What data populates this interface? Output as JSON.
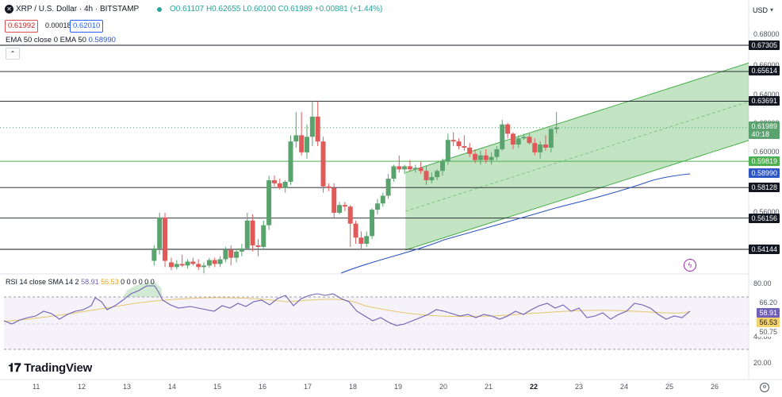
{
  "header": {
    "symbol": "XRP / U.S. Dollar · 4h · BITSTAMP",
    "ohlc": "O0.61107 H0.62655 L0.60100 C0.61989 +0.00881 (+1.44%)",
    "bid": "0.61992",
    "spread": "0.00018",
    "ask": "0.62010",
    "ema_label": "EMA 50 close 0 EMA 50",
    "ema_value": "0.58990",
    "currency": "USD"
  },
  "rsi": {
    "label": "RSI 14 close SMA 14 2",
    "value1": "58.91",
    "value2": "56.53",
    "zeros": "0 0 0 0 0 0",
    "levels": [
      "80.00",
      "40.00",
      "20.00"
    ],
    "badges": [
      "66.20",
      "58.91",
      "56.53",
      "50.75"
    ]
  },
  "colors": {
    "up": "#5aa36e",
    "down": "#e05a5a",
    "ema": "#2e55c4",
    "channel": "#6ab36a",
    "rsi_line": "#6f5fb5",
    "rsi_sma": "#e8c66a"
  },
  "logo_text": "TradingView",
  "chart_data": {
    "type": "candlestick",
    "title": "XRP / U.S. Dollar · 4h · BITSTAMP",
    "y_axis_ticks": [
      "0.68000",
      "0.66000",
      "0.64000",
      "0.62000",
      "0.60000",
      "0.56000"
    ],
    "x_axis_ticks": [
      "11",
      "12",
      "13",
      "14",
      "15",
      "16",
      "17",
      "18",
      "19",
      "20",
      "21",
      "22",
      "23",
      "24",
      "25",
      "26"
    ],
    "price_levels": [
      {
        "value": 0.67305,
        "label": "0.67305",
        "kind": "horizontal"
      },
      {
        "value": 0.65614,
        "label": "0.65614",
        "kind": "horizontal"
      },
      {
        "value": 0.63691,
        "label": "0.63691",
        "kind": "horizontal"
      },
      {
        "value": 0.59819,
        "label": "0.59819",
        "kind": "horizontal"
      },
      {
        "value": 0.58128,
        "label": "0.58128",
        "kind": "horizontal"
      },
      {
        "value": 0.56156,
        "label": "0.56156",
        "kind": "horizontal"
      },
      {
        "value": 0.54144,
        "label": "0.54144",
        "kind": "horizontal"
      }
    ],
    "current_price": "0.61989",
    "countdown": "40:18",
    "ema_price": "0.58990",
    "ylim": [
      0.53,
      0.695
    ],
    "channel": {
      "x_start": 19.18,
      "x_end": 26.7,
      "lower_start": 0.541,
      "lower_end": 0.611,
      "upper_start": 0.591,
      "upper_end": 0.661
    },
    "candles": [
      {
        "t": 13.62,
        "o": 0.534,
        "h": 0.544,
        "l": 0.531,
        "c": 0.542
      },
      {
        "t": 13.74,
        "o": 0.542,
        "h": 0.565,
        "l": 0.538,
        "c": 0.562
      },
      {
        "t": 13.86,
        "o": 0.562,
        "h": 0.565,
        "l": 0.53,
        "c": 0.534
      },
      {
        "t": 14.0,
        "o": 0.533,
        "h": 0.536,
        "l": 0.528,
        "c": 0.53
      },
      {
        "t": 14.12,
        "o": 0.53,
        "h": 0.5345,
        "l": 0.5285,
        "c": 0.532
      },
      {
        "t": 14.24,
        "o": 0.532,
        "h": 0.538,
        "l": 0.53,
        "c": 0.531
      },
      {
        "t": 14.36,
        "o": 0.531,
        "h": 0.535,
        "l": 0.529,
        "c": 0.5335
      },
      {
        "t": 14.48,
        "o": 0.5335,
        "h": 0.536,
        "l": 0.531,
        "c": 0.532
      },
      {
        "t": 14.6,
        "o": 0.532,
        "h": 0.535,
        "l": 0.528,
        "c": 0.53
      },
      {
        "t": 14.72,
        "o": 0.53,
        "h": 0.533,
        "l": 0.526,
        "c": 0.531
      },
      {
        "t": 14.84,
        "o": 0.531,
        "h": 0.536,
        "l": 0.5295,
        "c": 0.5345
      },
      {
        "t": 14.96,
        "o": 0.5345,
        "h": 0.536,
        "l": 0.53,
        "c": 0.532
      },
      {
        "t": 15.08,
        "o": 0.532,
        "h": 0.537,
        "l": 0.53,
        "c": 0.535
      },
      {
        "t": 15.2,
        "o": 0.535,
        "h": 0.543,
        "l": 0.533,
        "c": 0.541
      },
      {
        "t": 15.32,
        "o": 0.541,
        "h": 0.544,
        "l": 0.531,
        "c": 0.536
      },
      {
        "t": 15.44,
        "o": 0.536,
        "h": 0.542,
        "l": 0.533,
        "c": 0.54
      },
      {
        "t": 15.56,
        "o": 0.54,
        "h": 0.545,
        "l": 0.537,
        "c": 0.542
      },
      {
        "t": 15.68,
        "o": 0.542,
        "h": 0.565,
        "l": 0.541,
        "c": 0.56
      },
      {
        "t": 15.8,
        "o": 0.56,
        "h": 0.564,
        "l": 0.54,
        "c": 0.544
      },
      {
        "t": 15.92,
        "o": 0.544,
        "h": 0.548,
        "l": 0.537,
        "c": 0.543
      },
      {
        "t": 16.04,
        "o": 0.543,
        "h": 0.56,
        "l": 0.542,
        "c": 0.557
      },
      {
        "t": 16.16,
        "o": 0.557,
        "h": 0.589,
        "l": 0.554,
        "c": 0.586
      },
      {
        "t": 16.28,
        "o": 0.586,
        "h": 0.589,
        "l": 0.582,
        "c": 0.584
      },
      {
        "t": 16.4,
        "o": 0.584,
        "h": 0.587,
        "l": 0.58,
        "c": 0.581
      },
      {
        "t": 16.52,
        "o": 0.581,
        "h": 0.586,
        "l": 0.578,
        "c": 0.585
      },
      {
        "t": 16.64,
        "o": 0.585,
        "h": 0.615,
        "l": 0.583,
        "c": 0.611
      },
      {
        "t": 16.76,
        "o": 0.611,
        "h": 0.63,
        "l": 0.607,
        "c": 0.615
      },
      {
        "t": 16.88,
        "o": 0.615,
        "h": 0.63,
        "l": 0.602,
        "c": 0.604
      },
      {
        "t": 17.0,
        "o": 0.604,
        "h": 0.622,
        "l": 0.6,
        "c": 0.614
      },
      {
        "t": 17.12,
        "o": 0.614,
        "h": 0.637,
        "l": 0.608,
        "c": 0.627
      },
      {
        "t": 17.24,
        "o": 0.627,
        "h": 0.637,
        "l": 0.608,
        "c": 0.611
      },
      {
        "t": 17.36,
        "o": 0.611,
        "h": 0.614,
        "l": 0.578,
        "c": 0.582
      },
      {
        "t": 17.48,
        "o": 0.582,
        "h": 0.584,
        "l": 0.579,
        "c": 0.581
      },
      {
        "t": 17.6,
        "o": 0.581,
        "h": 0.584,
        "l": 0.562,
        "c": 0.565
      },
      {
        "t": 17.72,
        "o": 0.565,
        "h": 0.572,
        "l": 0.564,
        "c": 0.57
      },
      {
        "t": 17.84,
        "o": 0.57,
        "h": 0.572,
        "l": 0.566,
        "c": 0.569
      },
      {
        "t": 17.96,
        "o": 0.569,
        "h": 0.57,
        "l": 0.543,
        "c": 0.558
      },
      {
        "t": 18.08,
        "o": 0.558,
        "h": 0.56,
        "l": 0.545,
        "c": 0.549
      },
      {
        "t": 18.2,
        "o": 0.549,
        "h": 0.553,
        "l": 0.541,
        "c": 0.545
      },
      {
        "t": 18.32,
        "o": 0.545,
        "h": 0.553,
        "l": 0.543,
        "c": 0.55
      },
      {
        "t": 18.44,
        "o": 0.55,
        "h": 0.568,
        "l": 0.548,
        "c": 0.567
      },
      {
        "t": 18.56,
        "o": 0.567,
        "h": 0.574,
        "l": 0.564,
        "c": 0.571
      },
      {
        "t": 18.68,
        "o": 0.571,
        "h": 0.578,
        "l": 0.569,
        "c": 0.576
      },
      {
        "t": 18.8,
        "o": 0.576,
        "h": 0.59,
        "l": 0.574,
        "c": 0.587
      },
      {
        "t": 18.92,
        "o": 0.587,
        "h": 0.596,
        "l": 0.585,
        "c": 0.595
      },
      {
        "t": 19.04,
        "o": 0.595,
        "h": 0.602,
        "l": 0.591,
        "c": 0.593
      },
      {
        "t": 19.16,
        "o": 0.593,
        "h": 0.596,
        "l": 0.59,
        "c": 0.595
      },
      {
        "t": 19.28,
        "o": 0.595,
        "h": 0.599,
        "l": 0.592,
        "c": 0.593
      },
      {
        "t": 19.4,
        "o": 0.593,
        "h": 0.596,
        "l": 0.591,
        "c": 0.594
      },
      {
        "t": 19.52,
        "o": 0.594,
        "h": 0.598,
        "l": 0.59,
        "c": 0.592
      },
      {
        "t": 19.64,
        "o": 0.592,
        "h": 0.595,
        "l": 0.583,
        "c": 0.586
      },
      {
        "t": 19.76,
        "o": 0.586,
        "h": 0.591,
        "l": 0.584,
        "c": 0.588
      },
      {
        "t": 19.88,
        "o": 0.588,
        "h": 0.593,
        "l": 0.586,
        "c": 0.592
      },
      {
        "t": 20.0,
        "o": 0.592,
        "h": 0.6,
        "l": 0.589,
        "c": 0.598
      },
      {
        "t": 20.12,
        "o": 0.598,
        "h": 0.616,
        "l": 0.596,
        "c": 0.612
      },
      {
        "t": 20.24,
        "o": 0.612,
        "h": 0.617,
        "l": 0.608,
        "c": 0.611
      },
      {
        "t": 20.36,
        "o": 0.611,
        "h": 0.613,
        "l": 0.606,
        "c": 0.608
      },
      {
        "t": 20.48,
        "o": 0.608,
        "h": 0.615,
        "l": 0.605,
        "c": 0.607
      },
      {
        "t": 20.6,
        "o": 0.607,
        "h": 0.61,
        "l": 0.601,
        "c": 0.603
      },
      {
        "t": 20.72,
        "o": 0.603,
        "h": 0.606,
        "l": 0.597,
        "c": 0.599
      },
      {
        "t": 20.84,
        "o": 0.599,
        "h": 0.605,
        "l": 0.596,
        "c": 0.602
      },
      {
        "t": 20.96,
        "o": 0.602,
        "h": 0.606,
        "l": 0.597,
        "c": 0.599
      },
      {
        "t": 21.08,
        "o": 0.599,
        "h": 0.604,
        "l": 0.596,
        "c": 0.601
      },
      {
        "t": 21.2,
        "o": 0.601,
        "h": 0.608,
        "l": 0.599,
        "c": 0.606
      },
      {
        "t": 21.32,
        "o": 0.606,
        "h": 0.625,
        "l": 0.605,
        "c": 0.622
      },
      {
        "t": 21.44,
        "o": 0.622,
        "h": 0.623,
        "l": 0.613,
        "c": 0.616
      },
      {
        "t": 21.56,
        "o": 0.616,
        "h": 0.617,
        "l": 0.606,
        "c": 0.609
      },
      {
        "t": 21.68,
        "o": 0.609,
        "h": 0.615,
        "l": 0.607,
        "c": 0.613
      },
      {
        "t": 21.8,
        "o": 0.613,
        "h": 0.616,
        "l": 0.612,
        "c": 0.614
      },
      {
        "t": 21.92,
        "o": 0.614,
        "h": 0.616,
        "l": 0.609,
        "c": 0.61
      },
      {
        "t": 22.04,
        "o": 0.61,
        "h": 0.613,
        "l": 0.602,
        "c": 0.604
      },
      {
        "t": 22.16,
        "o": 0.604,
        "h": 0.611,
        "l": 0.6,
        "c": 0.609
      },
      {
        "t": 22.28,
        "o": 0.609,
        "h": 0.615,
        "l": 0.605,
        "c": 0.607
      },
      {
        "t": 22.4,
        "o": 0.607,
        "h": 0.62,
        "l": 0.604,
        "c": 0.619
      },
      {
        "t": 22.52,
        "o": 0.619,
        "h": 0.63,
        "l": 0.616,
        "c": 0.62
      }
    ]
  }
}
